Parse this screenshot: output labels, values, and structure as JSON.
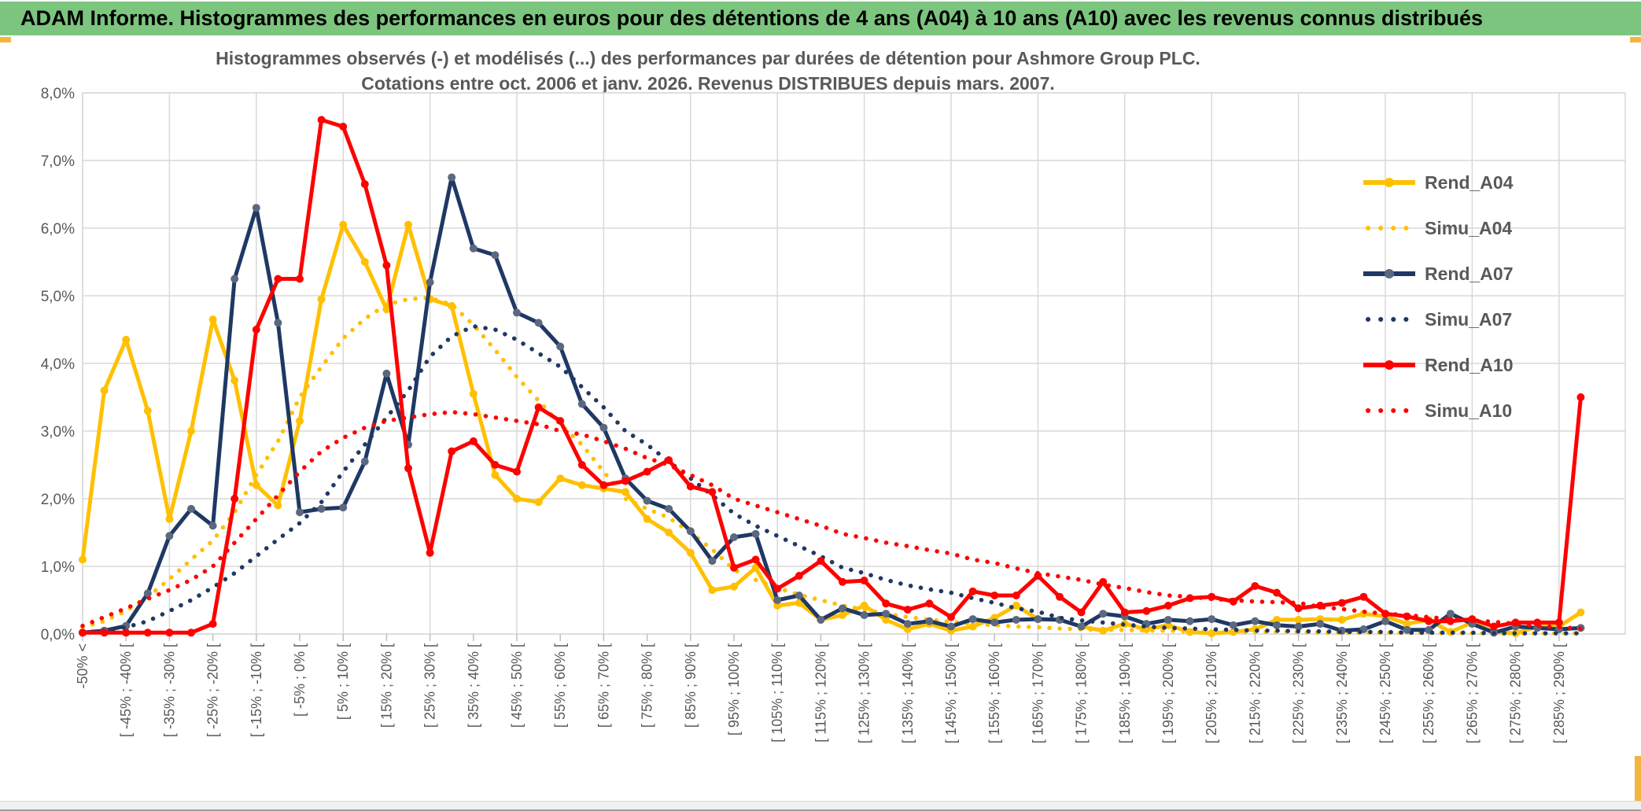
{
  "window": {
    "title_bar": "ADAM Informe. Histogrammes des performances en euros pour des détentions de 4 ans (A04) à 10 ans (A10) avec les revenus connus distribués"
  },
  "header": {
    "background_color": "#7CC57E",
    "accent_color": "#F4B53F"
  },
  "chart_data": {
    "type": "line",
    "title": "Histogrammes observés (-) et modélisés (...) des performances par durées de détention pour Ashmore Group PLC.",
    "subtitle": "Cotations entre oct. 2006 et janv. 2026. Revenus DISTRIBUES depuis mars. 2007.",
    "ylim": [
      0,
      8
    ],
    "grid": true,
    "legend_position": "right",
    "y_tick_labels": [
      "0,0%",
      "1,0%",
      "2,0%",
      "3,0%",
      "4,0%",
      "5,0%",
      "6,0%",
      "7,0%",
      "8,0%"
    ],
    "x_tick_labels": [
      "-50% <",
      "[ -45% ; -40% [",
      "[ -35% ; -30% [",
      "[ -25% ; -20% [",
      "[ -15% ; -10% [",
      "[ -5% ; 0% [",
      "[ 5% ; 10% [",
      "[ 15% ; 20% [",
      "[ 25% ; 30% [",
      "[ 35% ; 40% [",
      "[ 45% ; 50% [",
      "[ 55% ; 60% [",
      "[ 65% ; 70% [",
      "[ 75% ; 80% [",
      "[ 85% ; 90% [",
      "[ 95% ; 100% [",
      "[ 105% ; 110% [",
      "[ 115% ; 120% [",
      "[ 125% ; 130% [",
      "[ 135% ; 140% [",
      "[ 145% ; 150% [",
      "[ 155% ; 160% [",
      "[ 165% ; 170% [",
      "[ 175% ; 180% [",
      "[ 185% ; 190% [",
      "[ 195% ; 200% [",
      "[ 205% ; 210% [",
      "[ 215% ; 220% [",
      "[ 225% ; 230% [",
      "[ 235% ; 240% [",
      "[ 245% ; 250% [",
      "[ 255% ; 260% [",
      "[ 265% ; 270% [",
      "[ 275% ; 280% [",
      "[ 285% ; 290% ["
    ],
    "num_bins": 70,
    "labels_every_n_bins": 2,
    "gridlines_every_n_bins": 4,
    "series": [
      {
        "name": "Rend_A04",
        "style": "solid",
        "color": "#FFC000",
        "marker_color": "#FFC000",
        "values": [
          1.1,
          3.6,
          4.35,
          3.3,
          1.7,
          3.0,
          4.65,
          3.75,
          2.2,
          1.9,
          3.15,
          4.95,
          6.05,
          5.5,
          4.8,
          6.05,
          4.95,
          4.85,
          3.55,
          2.35,
          2.0,
          1.95,
          2.3,
          2.2,
          2.15,
          2.1,
          1.7,
          1.5,
          1.2,
          0.65,
          0.7,
          0.98,
          0.42,
          0.46,
          0.21,
          0.28,
          0.42,
          0.21,
          0.07,
          0.15,
          0.05,
          0.11,
          0.24,
          0.42,
          0.22,
          0.21,
          0.11,
          0.05,
          0.15,
          0.07,
          0.13,
          0.03,
          0.01,
          0.03,
          0.07,
          0.21,
          0.21,
          0.22,
          0.21,
          0.3,
          0.26,
          0.15,
          0.21,
          0.03,
          0.17,
          0.03,
          0.01,
          0.11,
          0.11,
          0.32
        ]
      },
      {
        "name": "Simu_A04",
        "style": "dotted",
        "color": "#FFC000",
        "values": [
          0.1,
          0.19,
          0.34,
          0.55,
          0.81,
          1.1,
          1.38,
          1.8,
          2.35,
          2.85,
          3.5,
          3.95,
          4.37,
          4.66,
          4.87,
          4.95,
          4.97,
          4.87,
          4.57,
          4.2,
          3.8,
          3.45,
          3.1,
          2.8,
          2.4,
          2.0,
          1.85,
          1.72,
          1.5,
          1.25,
          0.95,
          0.8,
          0.68,
          0.58,
          0.5,
          0.42,
          0.36,
          0.3,
          0.25,
          0.21,
          0.18,
          0.15,
          0.13,
          0.11,
          0.1,
          0.08,
          0.07,
          0.06,
          0.06,
          0.05,
          0.05,
          0.04,
          0.04,
          0.03,
          0.03,
          0.03,
          0.03,
          0.02,
          0.02,
          0.02,
          0.02,
          0.02,
          0.02,
          0.01,
          0.01,
          0.01,
          0.01,
          0.01,
          0.01,
          0.01
        ]
      },
      {
        "name": "Rend_A07",
        "style": "solid",
        "color": "#1F3864",
        "marker_color": "#5B6880",
        "values": [
          0.02,
          0.05,
          0.12,
          0.6,
          1.45,
          1.85,
          1.6,
          5.25,
          6.3,
          4.6,
          1.8,
          1.85,
          1.87,
          2.55,
          3.85,
          2.8,
          5.2,
          6.75,
          5.7,
          5.6,
          4.75,
          4.6,
          4.25,
          3.4,
          3.05,
          2.3,
          1.97,
          1.85,
          1.52,
          1.08,
          1.43,
          1.48,
          0.5,
          0.57,
          0.21,
          0.38,
          0.28,
          0.3,
          0.15,
          0.19,
          0.11,
          0.22,
          0.17,
          0.21,
          0.22,
          0.21,
          0.11,
          0.3,
          0.26,
          0.15,
          0.21,
          0.19,
          0.22,
          0.13,
          0.19,
          0.13,
          0.11,
          0.15,
          0.05,
          0.07,
          0.19,
          0.06,
          0.06,
          0.3,
          0.15,
          0.02,
          0.11,
          0.09,
          0.07,
          0.09
        ]
      },
      {
        "name": "Simu_A07",
        "style": "dotted",
        "color": "#1F3864",
        "values": [
          0.02,
          0.05,
          0.1,
          0.19,
          0.34,
          0.5,
          0.69,
          0.9,
          1.15,
          1.4,
          1.64,
          1.95,
          2.4,
          2.8,
          3.2,
          3.6,
          4.1,
          4.4,
          4.55,
          4.5,
          4.35,
          4.15,
          3.95,
          3.65,
          3.35,
          3.0,
          2.8,
          2.55,
          2.3,
          2.05,
          1.78,
          1.6,
          1.45,
          1.3,
          1.15,
          0.98,
          0.9,
          0.8,
          0.72,
          0.66,
          0.61,
          0.53,
          0.46,
          0.38,
          0.33,
          0.24,
          0.2,
          0.17,
          0.14,
          0.11,
          0.09,
          0.08,
          0.07,
          0.06,
          0.05,
          0.05,
          0.04,
          0.04,
          0.03,
          0.03,
          0.03,
          0.02,
          0.02,
          0.02,
          0.02,
          0.01,
          0.01,
          0.01,
          0.01,
          0.01
        ]
      },
      {
        "name": "Rend_A10",
        "style": "solid",
        "color": "#FF0000",
        "marker_color": "#FF0000",
        "values": [
          0.02,
          0.02,
          0.02,
          0.02,
          0.02,
          0.02,
          0.15,
          2.0,
          4.5,
          5.25,
          5.25,
          7.6,
          7.5,
          6.65,
          5.45,
          2.45,
          1.2,
          2.7,
          2.85,
          2.5,
          2.4,
          3.35,
          3.15,
          2.5,
          2.2,
          2.26,
          2.4,
          2.57,
          2.18,
          2.1,
          0.98,
          1.1,
          0.67,
          0.86,
          1.08,
          0.77,
          0.79,
          0.45,
          0.36,
          0.45,
          0.25,
          0.63,
          0.57,
          0.57,
          0.86,
          0.55,
          0.32,
          0.77,
          0.32,
          0.34,
          0.42,
          0.53,
          0.55,
          0.48,
          0.71,
          0.61,
          0.38,
          0.42,
          0.46,
          0.55,
          0.3,
          0.26,
          0.19,
          0.19,
          0.22,
          0.11,
          0.17,
          0.17,
          0.17,
          3.5
        ]
      },
      {
        "name": "Simu_A10",
        "style": "dotted",
        "color": "#FF0000",
        "values": [
          0.12,
          0.25,
          0.38,
          0.52,
          0.65,
          0.8,
          1.0,
          1.35,
          1.7,
          2.05,
          2.4,
          2.7,
          2.9,
          3.05,
          3.15,
          3.2,
          3.25,
          3.28,
          3.25,
          3.2,
          3.15,
          3.1,
          3.0,
          2.95,
          2.85,
          2.74,
          2.6,
          2.5,
          2.35,
          2.2,
          2.0,
          1.9,
          1.8,
          1.7,
          1.6,
          1.48,
          1.42,
          1.35,
          1.3,
          1.24,
          1.19,
          1.1,
          1.05,
          0.97,
          0.9,
          0.85,
          0.8,
          0.73,
          0.68,
          0.62,
          0.57,
          0.55,
          0.52,
          0.5,
          0.48,
          0.47,
          0.46,
          0.4,
          0.37,
          0.33,
          0.3,
          0.28,
          0.25,
          0.22,
          0.2,
          0.18,
          0.15,
          0.12,
          0.1,
          0.08
        ]
      }
    ],
    "colors": {
      "grid": "#D9D9D9",
      "plot_border": "#D9D9D9",
      "tick": "#BFBFBF",
      "text": "#595959"
    }
  }
}
